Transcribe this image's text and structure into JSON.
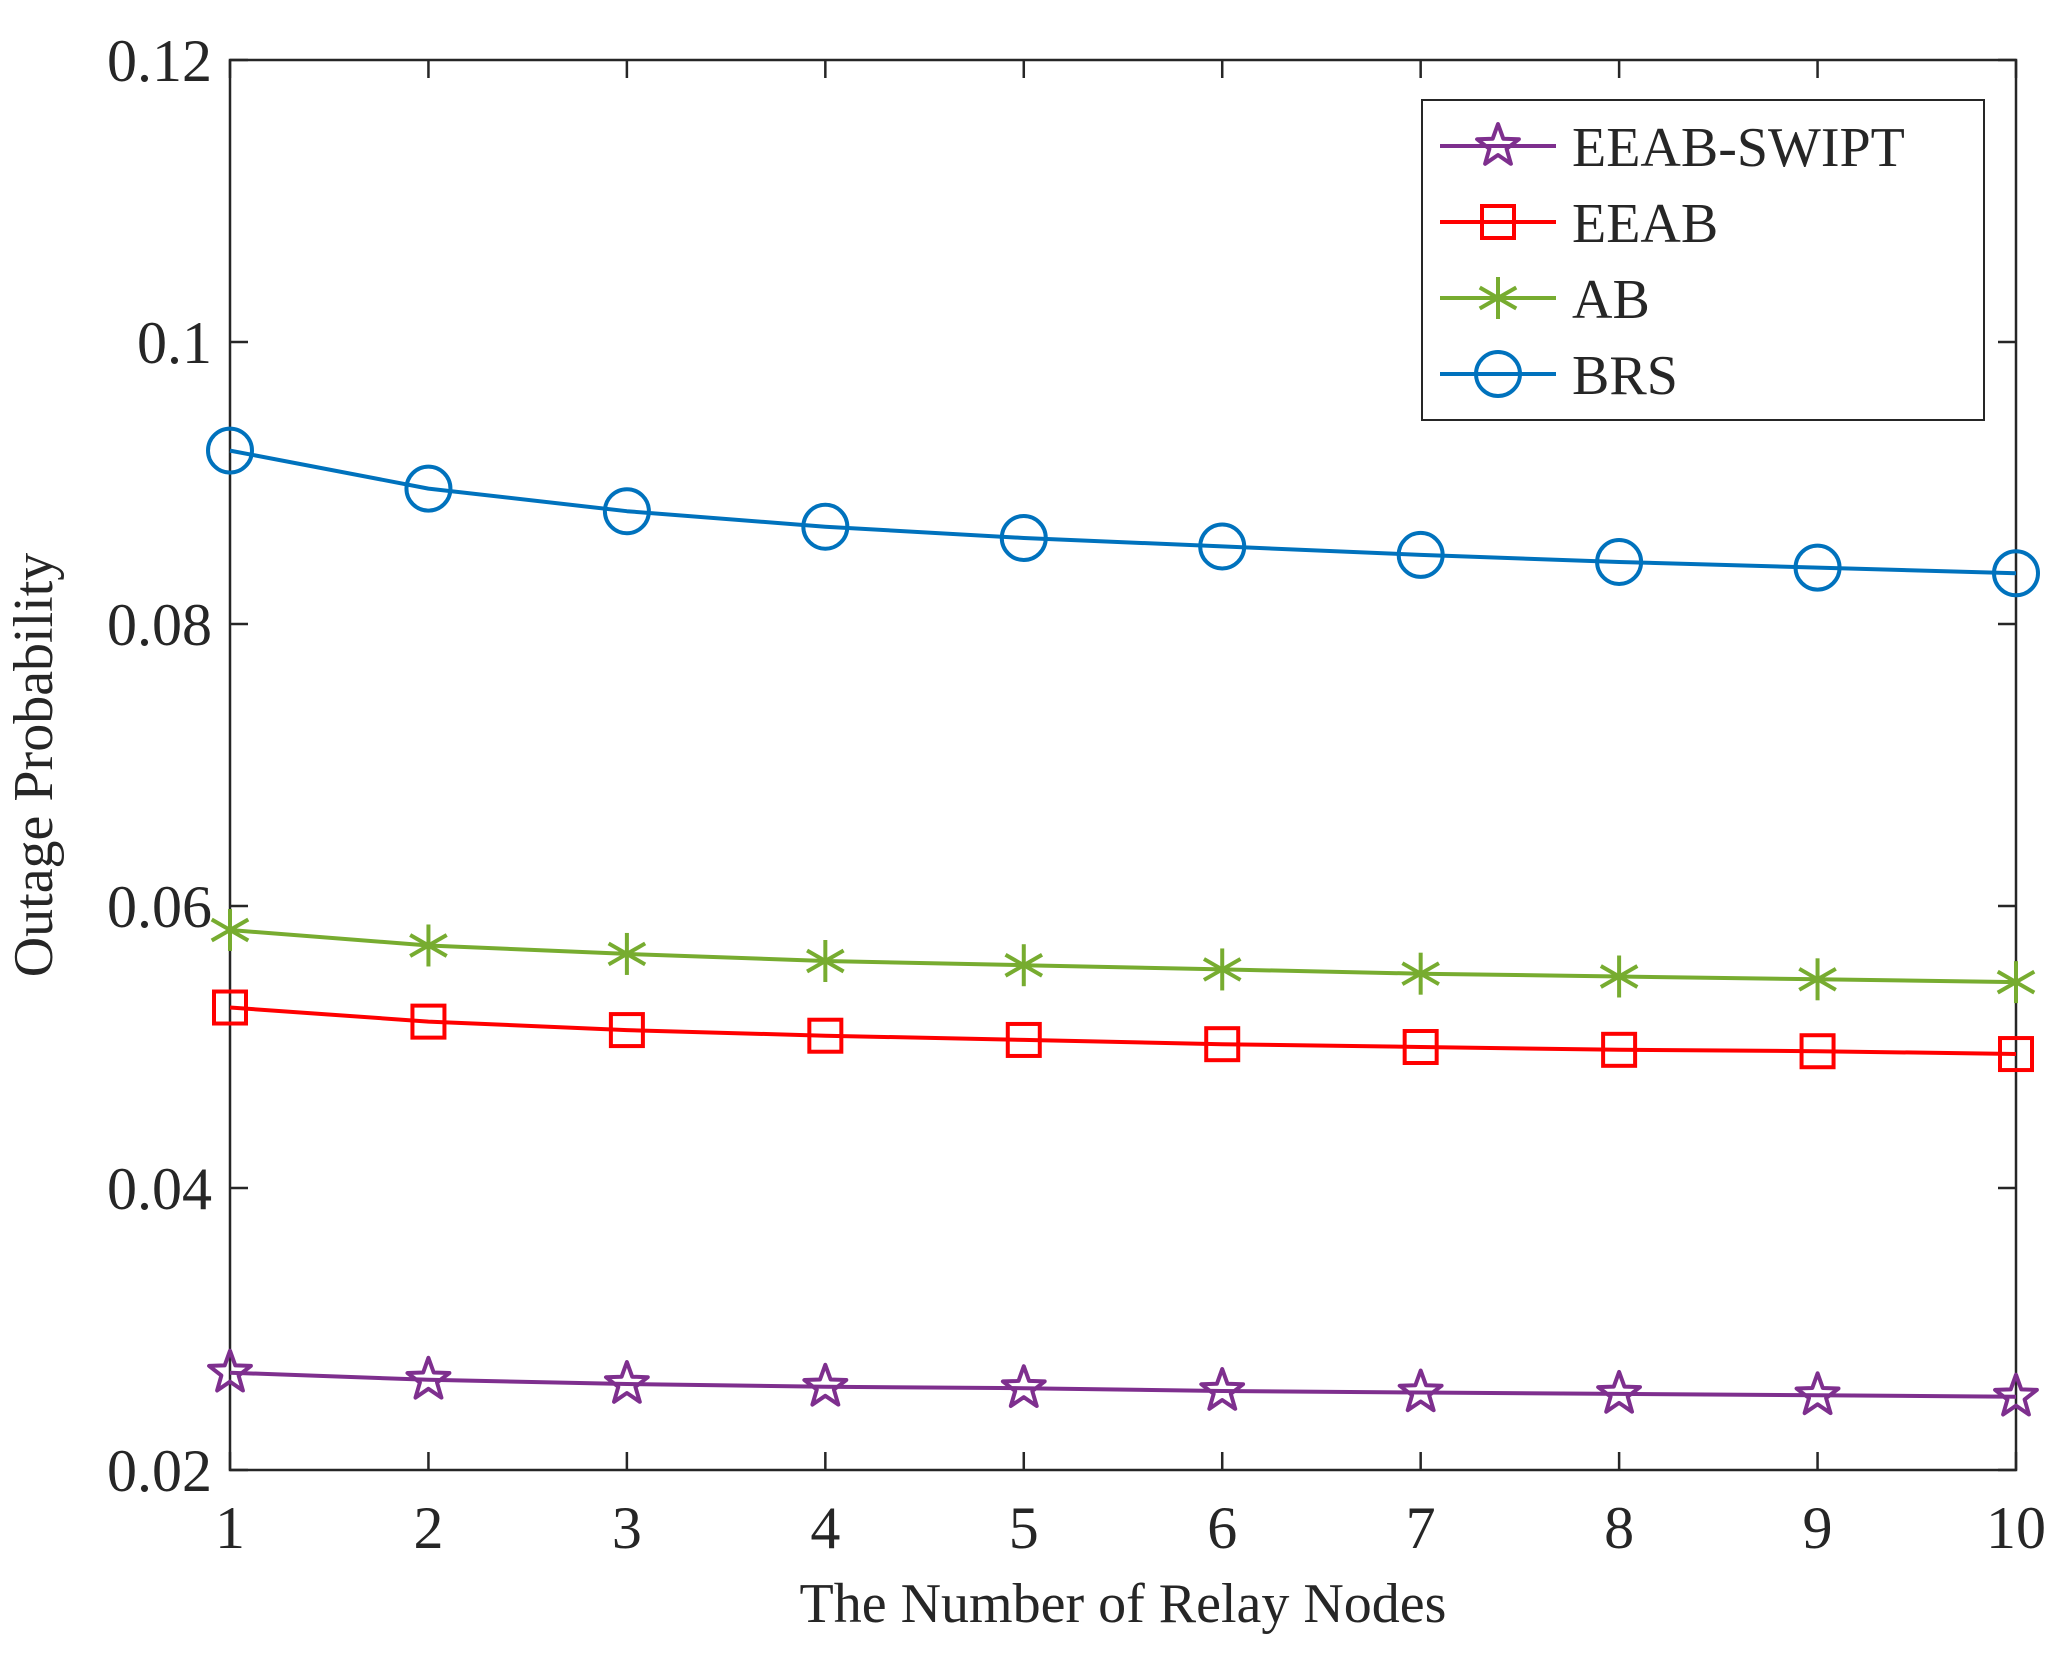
{
  "chart_data": {
    "type": "line",
    "title": "",
    "xlabel": "The Number of Relay Nodes",
    "ylabel": "Outage Probability",
    "x": [
      1,
      2,
      3,
      4,
      5,
      6,
      7,
      8,
      9,
      10
    ],
    "xlim": [
      1,
      10
    ],
    "ylim": [
      0.02,
      0.12
    ],
    "xticks": [
      1,
      2,
      3,
      4,
      5,
      6,
      7,
      8,
      9,
      10
    ],
    "xtick_labels": [
      "1",
      "2",
      "3",
      "4",
      "5",
      "6",
      "7",
      "8",
      "9",
      "10"
    ],
    "yticks": [
      0.02,
      0.04,
      0.06,
      0.08,
      0.1,
      0.12
    ],
    "ytick_labels": [
      "0.02",
      "0.04",
      "0.06",
      "0.08",
      "0.1",
      "0.12"
    ],
    "grid": false,
    "legend_position": "top-right",
    "series": [
      {
        "name": "EEAB-SWIPT",
        "color": "#7E2F8E",
        "marker": "star",
        "values": [
          0.0269,
          0.0264,
          0.0261,
          0.0259,
          0.0258,
          0.0256,
          0.0255,
          0.0254,
          0.0253,
          0.0252
        ]
      },
      {
        "name": "EEAB",
        "color": "#FF0000",
        "marker": "square",
        "values": [
          0.0528,
          0.0518,
          0.0512,
          0.0508,
          0.0505,
          0.0502,
          0.05,
          0.0498,
          0.0497,
          0.0495
        ]
      },
      {
        "name": "AB",
        "color": "#77AC30",
        "marker": "asterisk",
        "values": [
          0.0583,
          0.0572,
          0.0566,
          0.0561,
          0.0558,
          0.0555,
          0.0552,
          0.055,
          0.0548,
          0.0546
        ]
      },
      {
        "name": "BRS",
        "color": "#0072BD",
        "marker": "circle",
        "values": [
          0.0923,
          0.0896,
          0.088,
          0.0869,
          0.0861,
          0.0855,
          0.0849,
          0.0844,
          0.084,
          0.0836
        ]
      }
    ]
  }
}
